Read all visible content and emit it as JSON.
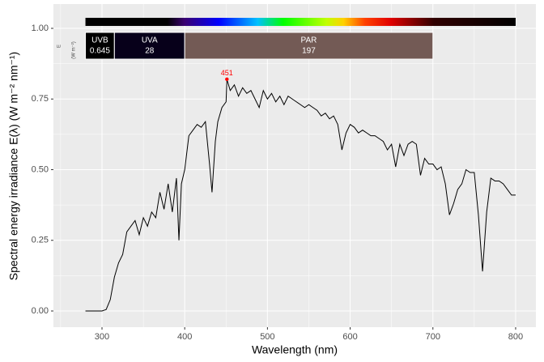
{
  "chart_data": {
    "type": "line",
    "y_label": "Spectral  energy  irradiance  E(λ)  (W m⁻² nm⁻¹)",
    "x_label": "Wavelength (nm)",
    "xlim": [
      241.3,
      824.5
    ],
    "ylim": [
      -0.0573,
      1.086
    ],
    "xticks": [
      300,
      400,
      500,
      600,
      700,
      800
    ],
    "yticks": [
      {
        "value": 0,
        "label": "0.00"
      },
      {
        "value": 0.25,
        "label": "0.25"
      },
      {
        "value": 0.5,
        "label": "0.50"
      },
      {
        "value": 0.75,
        "label": "0.75"
      },
      {
        "value": 1,
        "label": "1.00"
      }
    ],
    "grid": true,
    "color": "#000000",
    "x": [
      280,
      285,
      290,
      295,
      300,
      305,
      310,
      315,
      320,
      325,
      330,
      335,
      340,
      345,
      350,
      355,
      360,
      365,
      370,
      375,
      380,
      385,
      390,
      393,
      396,
      400,
      405,
      410,
      415,
      420,
      425,
      430,
      433,
      437,
      440,
      445,
      450,
      451,
      455,
      460,
      465,
      470,
      475,
      480,
      485,
      490,
      495,
      500,
      505,
      510,
      515,
      520,
      525,
      530,
      535,
      540,
      545,
      550,
      555,
      560,
      565,
      570,
      575,
      580,
      585,
      590,
      595,
      600,
      605,
      610,
      615,
      620,
      625,
      630,
      635,
      640,
      645,
      650,
      655,
      660,
      665,
      670,
      675,
      680,
      685,
      690,
      695,
      700,
      705,
      710,
      715,
      720,
      725,
      730,
      735,
      740,
      745,
      750,
      755,
      760,
      765,
      770,
      775,
      780,
      785,
      790,
      795,
      800
    ],
    "values": [
      0,
      0,
      0,
      0,
      0,
      0.005,
      0.04,
      0.12,
      0.17,
      0.2,
      0.28,
      0.3,
      0.32,
      0.27,
      0.33,
      0.3,
      0.35,
      0.33,
      0.42,
      0.36,
      0.45,
      0.35,
      0.47,
      0.25,
      0.45,
      0.5,
      0.62,
      0.64,
      0.66,
      0.65,
      0.67,
      0.52,
      0.42,
      0.6,
      0.67,
      0.72,
      0.74,
      0.82,
      0.78,
      0.8,
      0.76,
      0.79,
      0.77,
      0.78,
      0.75,
      0.72,
      0.78,
      0.75,
      0.77,
      0.74,
      0.76,
      0.73,
      0.76,
      0.75,
      0.74,
      0.73,
      0.72,
      0.73,
      0.72,
      0.71,
      0.69,
      0.7,
      0.68,
      0.69,
      0.66,
      0.57,
      0.63,
      0.66,
      0.65,
      0.63,
      0.64,
      0.63,
      0.62,
      0.62,
      0.61,
      0.6,
      0.57,
      0.59,
      0.51,
      0.59,
      0.55,
      0.59,
      0.6,
      0.59,
      0.48,
      0.54,
      0.52,
      0.52,
      0.5,
      0.51,
      0.45,
      0.34,
      0.38,
      0.43,
      0.45,
      0.5,
      0.49,
      0.49,
      0.34,
      0.14,
      0.35,
      0.47,
      0.46,
      0.46,
      0.45,
      0.43,
      0.41,
      0.41
    ],
    "peak": {
      "x": 451,
      "value": 0.82,
      "color": "#ff0000"
    },
    "color_bar_range": [
      280,
      800
    ],
    "band_axis_label": [
      "E",
      "(W m⁻²)"
    ],
    "bands": [
      {
        "name": "UVB",
        "range": [
          280,
          315
        ],
        "value": 0.645,
        "color": "#000000"
      },
      {
        "name": "UVA",
        "range": [
          315,
          400
        ],
        "value": 28,
        "color": "#07001a"
      },
      {
        "name": "PAR",
        "range": [
          400,
          700
        ],
        "value": 197,
        "color": "#735a55"
      }
    ]
  }
}
